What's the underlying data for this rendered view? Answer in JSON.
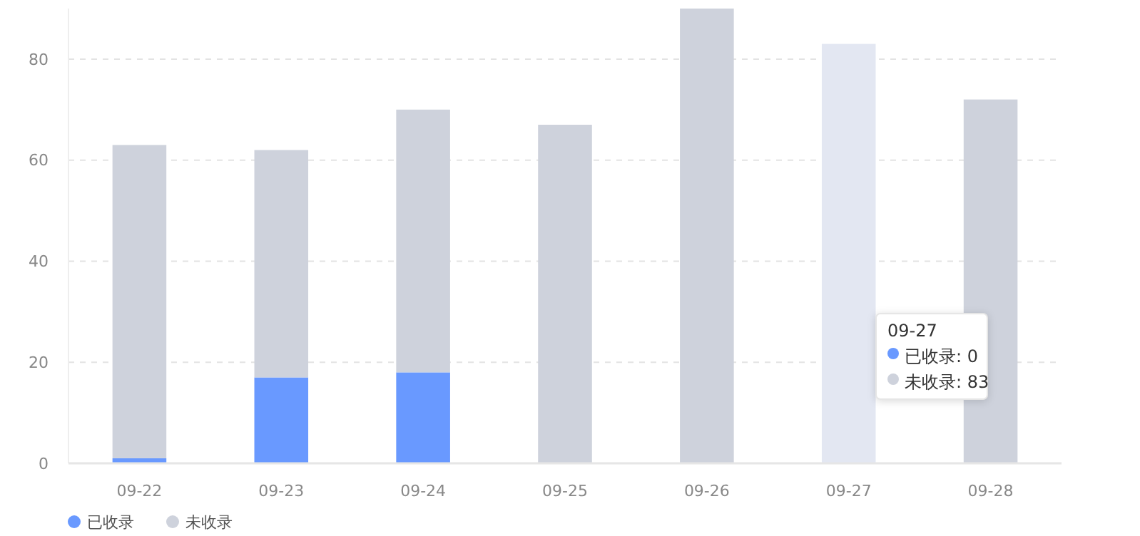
{
  "chart_data": {
    "type": "bar",
    "stacked": true,
    "categories": [
      "09-22",
      "09-23",
      "09-24",
      "09-25",
      "09-26",
      "09-27",
      "09-28"
    ],
    "series": [
      {
        "name": "已收录",
        "color": "#6999ff",
        "values": [
          1,
          17,
          18,
          0,
          0,
          0,
          0
        ]
      },
      {
        "name": "未收录",
        "color": "#ced2dc",
        "colors": [
          "#ced2dc",
          "#ced2dc",
          "#ced2dc",
          "#ced2dc",
          "#ced2dc",
          "#e3e7f2",
          "#ced2dc"
        ],
        "values": [
          62,
          45,
          52,
          67,
          90,
          83,
          72
        ]
      }
    ],
    "ylim": [
      0,
      90
    ],
    "yticks": [
      0,
      20,
      40,
      60,
      80
    ],
    "grid": "y",
    "legend": "bottom left",
    "annotations": [
      "09-27",
      "已收录: 0",
      "未收录: 83"
    ]
  }
}
